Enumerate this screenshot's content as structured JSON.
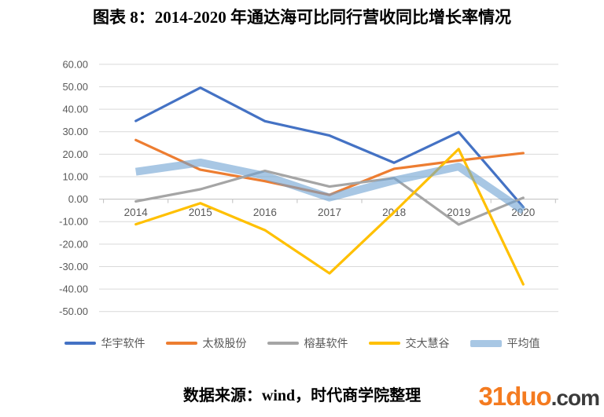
{
  "title": "图表 8：2014-2020 年通达海可比同行营收同比增长率情况",
  "source_note": "数据来源：wind，时代商学院整理",
  "logo": {
    "brand": "31duo",
    "suffix": ".com",
    "brand_color": "#F47B20",
    "suffix_color": "#3B3B3B"
  },
  "chart_data": {
    "type": "line",
    "title": "图表 8：2014-2020 年通达海可比同行营收同比增长率情况",
    "categories": [
      "2014",
      "2015",
      "2016",
      "2017",
      "2018",
      "2019",
      "2020"
    ],
    "series": [
      {
        "name": "华宇软件",
        "color": "#4472C4",
        "width": 3.2,
        "opacity": 1,
        "values": [
          34.8,
          49.6,
          34.7,
          28.3,
          16.2,
          29.8,
          -3.5
        ]
      },
      {
        "name": "太极股份",
        "color": "#ED7D31",
        "width": 3.2,
        "opacity": 1,
        "values": [
          26.3,
          13.1,
          8.0,
          1.9,
          13.5,
          17.2,
          20.5
        ]
      },
      {
        "name": "榕基软件",
        "color": "#A5A5A5",
        "width": 3.2,
        "opacity": 1,
        "values": [
          -1.0,
          4.4,
          12.6,
          5.6,
          9.4,
          -11.3,
          0.6
        ]
      },
      {
        "name": "交大慧谷",
        "color": "#FFC000",
        "width": 3.2,
        "opacity": 1,
        "values": [
          -11.2,
          -1.8,
          -13.8,
          -33.0,
          -5.8,
          22.3,
          -37.9
        ]
      },
      {
        "name": "平均值",
        "color": "#6EA2D2",
        "width": 10,
        "opacity": 0.6,
        "values": [
          12.2,
          16.3,
          10.4,
          0.7,
          8.3,
          14.5,
          -5.1
        ]
      }
    ],
    "xlabel": "",
    "ylabel": "",
    "ylim": [
      -50,
      60
    ],
    "ytick_step": 10,
    "ytick_decimals": 2,
    "grid": true,
    "legend_position": "bottom",
    "axis_label_color": "#595959",
    "gridline_color": "#D9D9D9",
    "axis_line_color": "#BFBFBF"
  }
}
